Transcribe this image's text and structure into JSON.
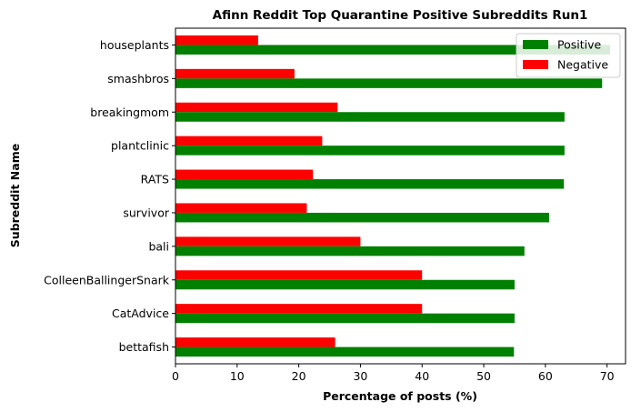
{
  "chart_data": {
    "type": "bar",
    "orientation": "horizontal",
    "title": "Afinn Reddit Top Quarantine Positive Subreddits Run1",
    "xlabel": "Percentage of posts (%)",
    "ylabel": "Subreddit Name",
    "xlim": [
      0,
      73
    ],
    "xticks": [
      0,
      10,
      20,
      30,
      40,
      50,
      60,
      70
    ],
    "categories": [
      "houseplants",
      "smashbros",
      "breakingmom",
      "plantclinic",
      "RATS",
      "survivor",
      "bali",
      "ColleenBallingerSnark",
      "CatAdvice",
      "bettafish"
    ],
    "series": [
      {
        "name": "Positive",
        "color": "#008000",
        "values": [
          70.5,
          69.2,
          63.1,
          63.1,
          63.0,
          60.6,
          56.6,
          55.0,
          55.0,
          54.9
        ]
      },
      {
        "name": "Negative",
        "color": "#ff0000",
        "values": [
          13.4,
          19.3,
          26.3,
          23.8,
          22.3,
          21.3,
          30.0,
          40.0,
          40.0,
          25.9
        ]
      }
    ],
    "legend": {
      "position": "top-right"
    },
    "grid": false
  }
}
